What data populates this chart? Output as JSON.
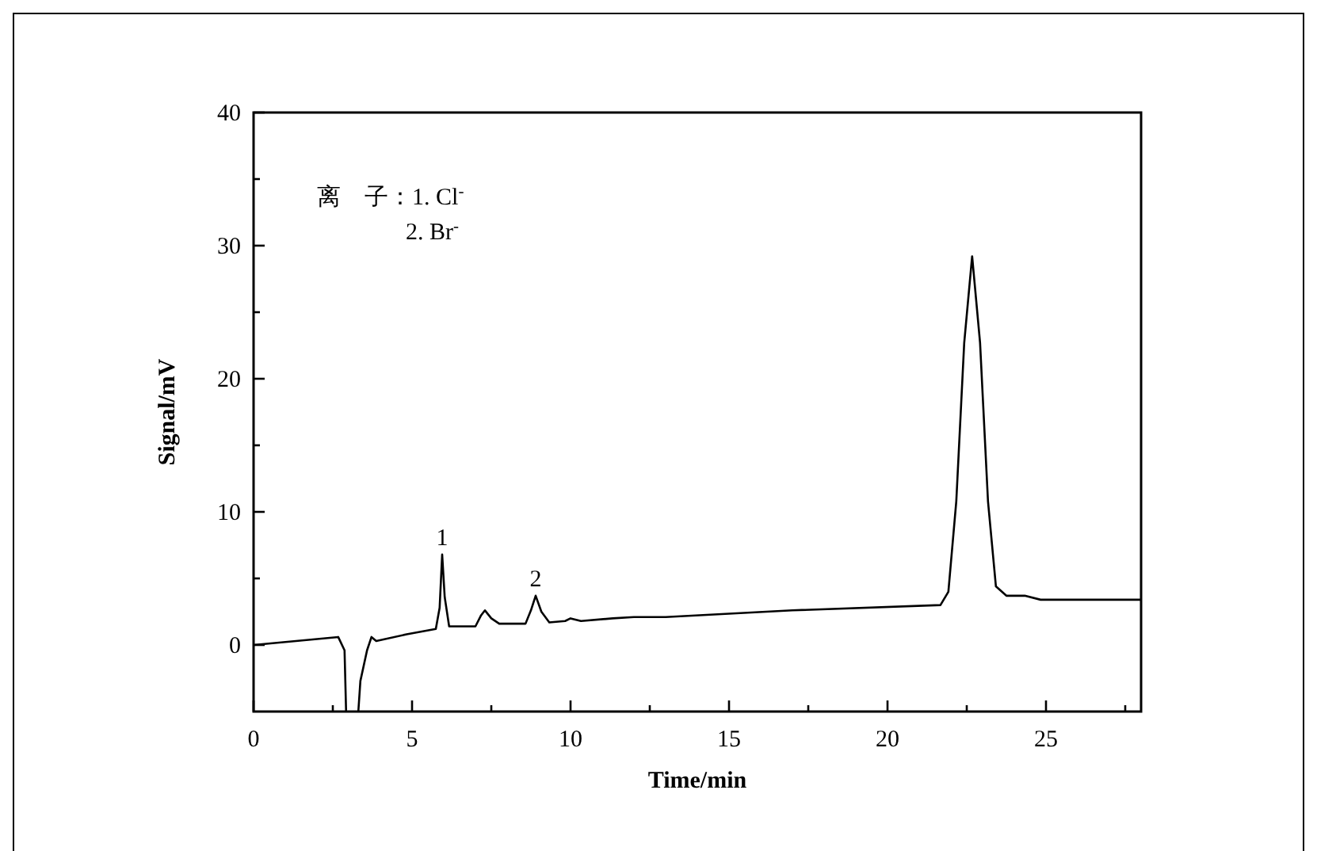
{
  "chart_data": {
    "type": "line",
    "xlabel": "Time/min",
    "ylabel": "Signal/mV",
    "xlim": [
      0,
      28
    ],
    "ylim": [
      -5,
      40
    ],
    "xticks": [
      0,
      {
        "value": 2.5,
        "label": null
      },
      5,
      {
        "value": 7.5,
        "label": null
      },
      10,
      {
        "value": 12.5,
        "label": null
      },
      15,
      {
        "value": 17.5,
        "label": null
      },
      20,
      {
        "value": 22.5,
        "label": null
      },
      25,
      {
        "value": 27.5,
        "label": null
      }
    ],
    "yticks": [
      0,
      {
        "value": 5,
        "label": null
      },
      10,
      {
        "value": 15,
        "label": null
      },
      20,
      {
        "value": 25,
        "label": null
      },
      30,
      {
        "value": 35,
        "label": null
      },
      40
    ],
    "grid": false,
    "marker": "none",
    "line_style": "solid",
    "series": [
      {
        "color": "#000000",
        "x": [
          0,
          2.67,
          2.87,
          2.97,
          3.17,
          3.37,
          3.58,
          3.72,
          3.87,
          4.83,
          5.75,
          5.87,
          5.95,
          6.03,
          6.17,
          7.0,
          7.17,
          7.3,
          7.5,
          7.75,
          8.58,
          8.75,
          8.9,
          9.08,
          9.33,
          9.83,
          10.0,
          10.33,
          11.33,
          12,
          13,
          17,
          21.67,
          21.92,
          22.17,
          22.42,
          22.67,
          22.92,
          23.17,
          23.42,
          23.75,
          24.33,
          24.83,
          28
        ],
        "values": [
          0,
          0.6,
          -0.4,
          null,
          null,
          -2.7,
          -0.4,
          0.6,
          0.3,
          0.8,
          1.2,
          2.8,
          6.8,
          3.6,
          1.4,
          1.4,
          2.2,
          2.6,
          2.0,
          1.6,
          1.6,
          2.6,
          3.7,
          2.5,
          1.7,
          1.8,
          2.0,
          1.8,
          2.0,
          2.1,
          2.1,
          2.6,
          3.0,
          4.0,
          10.8,
          22.7,
          29.2,
          22.7,
          10.8,
          4.4,
          3.7,
          3.7,
          3.4,
          3.4
        ]
      }
    ],
    "annotations": [
      {
        "text": "1",
        "x": 5.95,
        "y": 6.8
      },
      {
        "text": "2",
        "x": 8.9,
        "y": 3.7
      },
      "离　子：1. Cl$^{-}$",
      "2. Br$^{-}$"
    ]
  }
}
